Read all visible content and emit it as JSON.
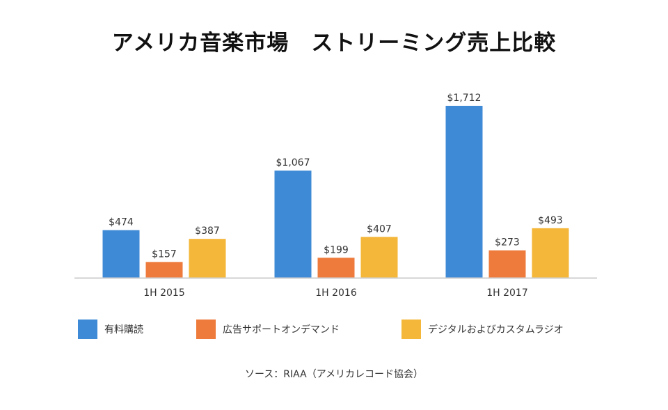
{
  "chart_data": {
    "type": "bar",
    "title": "アメリカ音楽市場　ストリーミング売上比較",
    "categories": [
      "1H 2015",
      "1H 2016",
      "1H 2017"
    ],
    "series": [
      {
        "name": "有料購読",
        "color": "#3f8ad6",
        "values": [
          474,
          1067,
          1712
        ],
        "labels": [
          "$474",
          "$1,067",
          "$1,712"
        ]
      },
      {
        "name": "広告サポートオンデマンド",
        "color": "#ee7b3c",
        "values": [
          157,
          199,
          273
        ],
        "labels": [
          "$157",
          "$199",
          "$273"
        ]
      },
      {
        "name": "デジタルおよびカスタムラジオ",
        "color": "#f4b73a",
        "values": [
          387,
          407,
          493
        ],
        "labels": [
          "$387",
          "$407",
          "$493"
        ]
      }
    ],
    "xlabel": "",
    "ylabel": "",
    "ylim": [
      0,
      1712
    ],
    "grid": false,
    "legend_position": "bottom"
  },
  "source": "ソース：RIAA（アメリカレコード協会）"
}
